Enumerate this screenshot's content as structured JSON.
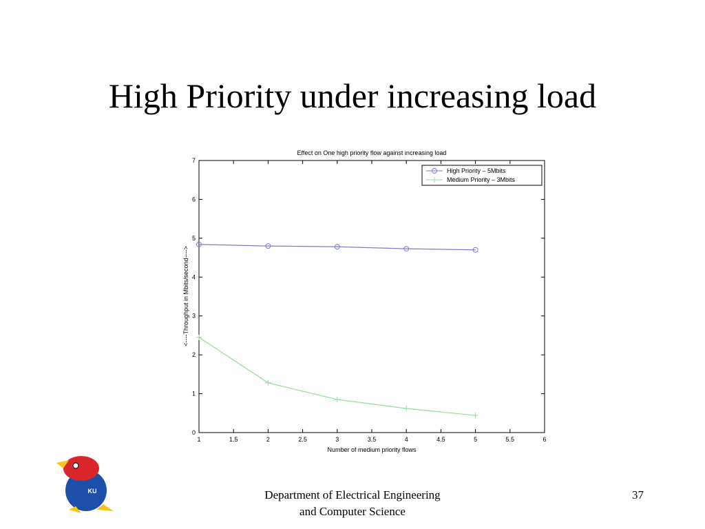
{
  "slide_title": "High Priority under increasing load",
  "footer": {
    "lines": [
      "Department of Electrical Engineering",
      "and Computer Science"
    ],
    "page_number": "37"
  },
  "logo": {
    "text": "KU"
  },
  "chart_data": {
    "type": "line",
    "title": "Effect on One high priority flow against increasing load",
    "x_label": "Number of medium priority flows",
    "y_label": "<----Throughput in Mbits/second---->",
    "x": [
      1,
      2,
      3,
      4,
      5
    ],
    "series": [
      {
        "name": "High Priority – 5Mbits",
        "color": "#7b7bd0",
        "marker": "circle",
        "values": [
          4.84,
          4.8,
          4.78,
          4.73,
          4.7
        ]
      },
      {
        "name": "Medium Priority – 3Mbits",
        "color": "#8fe08f",
        "marker": "plus",
        "values": [
          2.45,
          1.28,
          0.85,
          0.62,
          0.44
        ]
      }
    ],
    "xlim": [
      1,
      6
    ],
    "xticks": [
      1,
      1.5,
      2,
      2.5,
      3,
      3.5,
      4,
      4.5,
      5,
      5.5,
      6
    ],
    "ylim": [
      0,
      7
    ],
    "yticks": [
      0,
      1,
      2,
      3,
      4,
      5,
      6,
      7
    ],
    "legend": "top-right",
    "grid": false
  }
}
